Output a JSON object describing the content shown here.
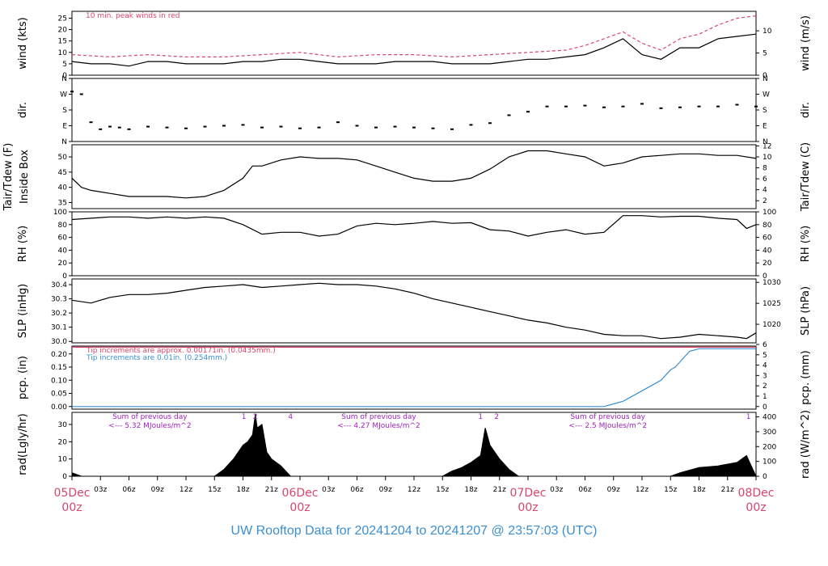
{
  "footer": {
    "text": "UW Rooftop Data for 20241204  to  20241207 @ 23:57:03  (UTC)",
    "color": "#3b8fd1"
  },
  "colors": {
    "line": "#000000",
    "peak": "#d9456b",
    "pcp": "#3b8fd1",
    "note_red": "#d9456b",
    "note_blue": "#3b8fd1",
    "rad_note": "#a020c0",
    "day_label": "#d9456b"
  },
  "chart_data": [
    {
      "id": "wind",
      "type": "line",
      "ylabel_left": "wind (kts)",
      "ylabel_right": "wind (m/s)",
      "ylim": [
        0,
        28
      ],
      "yticks_left": [
        0,
        5,
        10,
        15,
        20,
        25
      ],
      "yticks_right": [
        0,
        5,
        10
      ],
      "annotation": "10 min. peak winds in red",
      "series": [
        {
          "name": "",
          "x": [
            0,
            2,
            4,
            6,
            8,
            10,
            12,
            14,
            16,
            18,
            20,
            22,
            24,
            26,
            28,
            30,
            32,
            34,
            36,
            38,
            40,
            42,
            44,
            46,
            48,
            50,
            52,
            54,
            56,
            58,
            60,
            62,
            64,
            66,
            68,
            70,
            72
          ],
          "y": [
            6,
            5,
            5,
            4,
            6,
            6,
            5,
            5,
            5,
            6,
            6,
            7,
            7,
            6,
            5,
            5,
            5,
            6,
            6,
            6,
            5,
            5,
            5,
            6,
            7,
            7,
            8,
            9,
            12,
            16,
            9,
            7,
            12,
            12,
            16,
            17,
            18
          ]
        },
        {
          "name": "10 min. peak winds",
          "x": [
            0,
            4,
            8,
            12,
            16,
            20,
            24,
            28,
            32,
            36,
            40,
            44,
            48,
            52,
            54,
            56,
            58,
            60,
            62,
            64,
            66,
            68,
            70,
            72
          ],
          "y": [
            9,
            8,
            9,
            8,
            8,
            9,
            10,
            8,
            9,
            9,
            8,
            9,
            10,
            11,
            13,
            16,
            19,
            14,
            11,
            16,
            18,
            22,
            25,
            26
          ]
        }
      ]
    },
    {
      "id": "dir",
      "type": "scatter",
      "ylabel_left": "dir.",
      "ylabel_right": "dir.",
      "ylim": [
        0,
        360
      ],
      "yticks_left": [
        "N",
        "E",
        "S",
        "W",
        "N"
      ],
      "yticks_right": [
        "N",
        "E",
        "S",
        "W",
        "N"
      ],
      "series": [
        {
          "name": "",
          "x": [
            0,
            1,
            2,
            3,
            4,
            5,
            6,
            8,
            10,
            12,
            14,
            16,
            18,
            20,
            22,
            24,
            26,
            28,
            30,
            32,
            34,
            36,
            38,
            40,
            42,
            44,
            46,
            48,
            50,
            52,
            54,
            56,
            58,
            60,
            62,
            64,
            66,
            68,
            70,
            72
          ],
          "y": [
            285,
            270,
            110,
            70,
            85,
            80,
            70,
            85,
            80,
            75,
            85,
            90,
            95,
            80,
            85,
            75,
            80,
            110,
            90,
            80,
            85,
            80,
            75,
            70,
            95,
            105,
            150,
            170,
            200,
            200,
            205,
            195,
            200,
            215,
            190,
            195,
            200,
            200,
            210,
            200
          ]
        }
      ]
    },
    {
      "id": "temp",
      "type": "line",
      "ylabel_left": "Tair/Tdew (F)\nInside Box",
      "ylabel_right": "Tair/Tdew (C)",
      "ylim": [
        33,
        54
      ],
      "yticks_left": [
        35,
        40,
        45,
        50
      ],
      "yticks_right": [
        2,
        4,
        6,
        8,
        10,
        12
      ],
      "series": [
        {
          "name": "",
          "x": [
            0,
            1,
            2,
            4,
            6,
            8,
            10,
            12,
            14,
            16,
            18,
            19,
            20,
            22,
            24,
            26,
            28,
            30,
            32,
            34,
            36,
            38,
            40,
            42,
            44,
            46,
            48,
            50,
            52,
            54,
            56,
            58,
            60,
            62,
            64,
            66,
            68,
            70,
            72
          ],
          "y": [
            43,
            40,
            39,
            38,
            37,
            37,
            37,
            36.5,
            37,
            39,
            43,
            47,
            47,
            49,
            50,
            49.5,
            49.5,
            49,
            47,
            45,
            43,
            42,
            42,
            43,
            46,
            50,
            52,
            52,
            51,
            50,
            47,
            48,
            50,
            50.5,
            51,
            51,
            50.5,
            50.5,
            49.5
          ]
        }
      ]
    },
    {
      "id": "rh",
      "type": "line",
      "ylabel_left": "RH (%)",
      "ylabel_right": "RH (%)",
      "ylim": [
        0,
        100
      ],
      "yticks_left": [
        0,
        20,
        40,
        60,
        80,
        100
      ],
      "yticks_right": [
        0,
        20,
        40,
        60,
        80,
        100
      ],
      "series": [
        {
          "name": "",
          "x": [
            0,
            2,
            4,
            6,
            8,
            10,
            12,
            14,
            16,
            18,
            20,
            22,
            24,
            26,
            28,
            30,
            32,
            34,
            36,
            38,
            40,
            42,
            44,
            46,
            48,
            50,
            52,
            54,
            56,
            58,
            60,
            62,
            64,
            66,
            68,
            70,
            71,
            72
          ],
          "y": [
            88,
            90,
            92,
            92,
            90,
            92,
            90,
            92,
            90,
            80,
            65,
            68,
            68,
            62,
            65,
            78,
            82,
            80,
            82,
            85,
            82,
            83,
            72,
            70,
            62,
            68,
            72,
            65,
            68,
            94,
            94,
            92,
            93,
            93,
            90,
            88,
            74,
            80
          ]
        }
      ]
    },
    {
      "id": "slp",
      "type": "line",
      "ylabel_left": "SLP (inHg)",
      "ylabel_right": "SLP (hPa)",
      "ylim": [
        29.99,
        30.44
      ],
      "yticks_left": [
        30.0,
        30.1,
        30.2,
        30.3,
        30.4
      ],
      "yticks_right": [
        1020,
        1025,
        1030
      ],
      "series": [
        {
          "name": "",
          "x": [
            0,
            2,
            4,
            6,
            8,
            10,
            12,
            14,
            16,
            18,
            20,
            22,
            24,
            26,
            28,
            30,
            32,
            34,
            36,
            38,
            40,
            42,
            44,
            46,
            48,
            50,
            52,
            54,
            56,
            58,
            60,
            62,
            64,
            66,
            68,
            70,
            71,
            72
          ],
          "y": [
            30.29,
            30.27,
            30.31,
            30.33,
            30.33,
            30.34,
            30.36,
            30.38,
            30.39,
            30.4,
            30.38,
            30.39,
            30.4,
            30.41,
            30.4,
            30.4,
            30.39,
            30.37,
            30.34,
            30.3,
            30.27,
            30.24,
            30.21,
            30.18,
            30.15,
            30.13,
            30.1,
            30.08,
            30.05,
            30.04,
            30.04,
            30.02,
            30.03,
            30.05,
            30.04,
            30.03,
            30.02,
            30.06
          ]
        }
      ]
    },
    {
      "id": "pcp",
      "type": "line",
      "ylabel_left": "pcp. (in)",
      "ylabel_right": "pcp. (mm)",
      "ylim": [
        -0.01,
        0.23
      ],
      "yticks_left": [
        0.0,
        0.05,
        0.1,
        0.15,
        0.2
      ],
      "yticks_right": [
        0,
        1,
        2,
        3,
        4,
        5,
        6
      ],
      "annotations": [
        "Tip increments are approx. 0.00171in. (0.0435mm.)",
        "Tip increments are 0.01in. (0.254mm.)"
      ],
      "series": [
        {
          "name": "Tip increments are approx. 0.00171in. (0.0435mm.)",
          "x": [
            0,
            72
          ],
          "y": [
            0.2256,
            0.2256
          ]
        },
        {
          "name": "Tip increments are 0.01in. (0.254mm.)",
          "x": [
            0,
            56,
            57,
            58,
            59,
            60,
            61,
            62,
            62.5,
            63,
            63.5,
            64,
            64.5,
            65,
            66,
            72
          ],
          "y": [
            0,
            0,
            0.01,
            0.02,
            0.04,
            0.06,
            0.08,
            0.1,
            0.12,
            0.14,
            0.15,
            0.17,
            0.19,
            0.21,
            0.22,
            0.22
          ]
        }
      ]
    },
    {
      "id": "rad",
      "type": "area",
      "ylabel_left": "rad(Lgly/hr)",
      "ylabel_right": "rad (W/m^2)",
      "ylim": [
        0,
        37
      ],
      "yticks_left": [
        0,
        10,
        20,
        30
      ],
      "yticks_right": [
        0,
        100,
        200,
        300,
        400
      ],
      "series": [
        {
          "name": "",
          "x": [
            0,
            0.5,
            1,
            15,
            16,
            17,
            18,
            18.5,
            19,
            19.3,
            19.5,
            20,
            20.5,
            21,
            22,
            23,
            39,
            40,
            41,
            42,
            43,
            43.5,
            44,
            45,
            46,
            47,
            63,
            64,
            66,
            68,
            70,
            71,
            71.5,
            72
          ],
          "y": [
            2,
            1,
            0,
            0,
            4,
            10,
            18,
            20,
            24,
            36,
            28,
            30,
            14,
            10,
            6,
            0,
            0,
            3,
            5,
            8,
            12,
            28,
            18,
            10,
            4,
            0,
            0,
            2,
            5,
            6,
            8,
            12,
            6,
            0
          ]
        }
      ],
      "notes": [
        {
          "text": [
            "Sum of previous day",
            "<--- 5.32 MJoules/m^2"
          ],
          "x": 8.2
        },
        {
          "text": [
            "Sum of previous day",
            "<--- 4.27 MJoules/m^2"
          ],
          "x": 32.3
        },
        {
          "text": [
            "Sum of previous day",
            "<--- 2.5 MJoules/m^2"
          ],
          "x": 56.4
        }
      ],
      "markers": [
        {
          "label": "1",
          "x": 18.1
        },
        {
          "label": "2",
          "x": 19.3
        },
        {
          "label": "4",
          "x": 23.0
        },
        {
          "label": "1",
          "x": 43.0
        },
        {
          "label": "2",
          "x": 44.7
        },
        {
          "label": "1",
          "x": 71.2
        }
      ]
    }
  ],
  "xaxis": {
    "xlim": [
      0,
      72
    ],
    "ticks": [
      {
        "x": 0,
        "label": "",
        "big": "05Dec",
        "big2": "00z"
      },
      {
        "x": 3,
        "label": "03z"
      },
      {
        "x": 6,
        "label": "06z"
      },
      {
        "x": 9,
        "label": "09z"
      },
      {
        "x": 12,
        "label": "12z"
      },
      {
        "x": 15,
        "label": "15z"
      },
      {
        "x": 18,
        "label": "18z"
      },
      {
        "x": 21,
        "label": "21z"
      },
      {
        "x": 24,
        "label": "",
        "big": "06Dec",
        "big2": "00z"
      },
      {
        "x": 27,
        "label": "03z"
      },
      {
        "x": 30,
        "label": "06z"
      },
      {
        "x": 33,
        "label": "09z"
      },
      {
        "x": 36,
        "label": "12z"
      },
      {
        "x": 39,
        "label": "15z"
      },
      {
        "x": 42,
        "label": "18z"
      },
      {
        "x": 45,
        "label": "21z"
      },
      {
        "x": 48,
        "label": "",
        "big": "07Dec",
        "big2": "00z"
      },
      {
        "x": 51,
        "label": "03z"
      },
      {
        "x": 54,
        "label": "06z"
      },
      {
        "x": 57,
        "label": "09z"
      },
      {
        "x": 60,
        "label": "12z"
      },
      {
        "x": 63,
        "label": "15z"
      },
      {
        "x": 66,
        "label": "18z"
      },
      {
        "x": 69,
        "label": "21z"
      },
      {
        "x": 72,
        "label": "",
        "big": "08Dec",
        "big2": "00z"
      }
    ]
  }
}
